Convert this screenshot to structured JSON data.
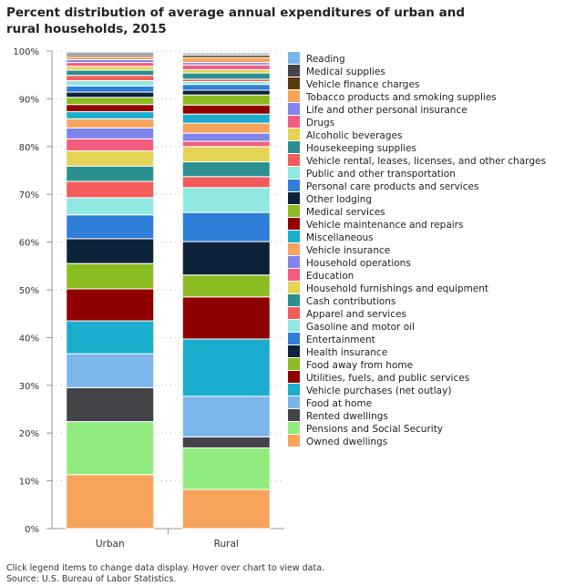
{
  "chart_data": {
    "type": "bar",
    "stacked": true,
    "title": "Percent distribution of average annual expenditures of urban and rural households, 2015",
    "categories": [
      "Urban",
      "Rural"
    ],
    "ylim": [
      0,
      100
    ],
    "yticks": [
      "0%",
      "10%",
      "20%",
      "30%",
      "40%",
      "50%",
      "60%",
      "70%",
      "80%",
      "90%",
      "100%"
    ],
    "grid": true,
    "legend_position": "right",
    "series": [
      {
        "name": "Owned dwellings",
        "color": "#f7a35c",
        "values": [
          11.3,
          8.2
        ]
      },
      {
        "name": "Pensions and Social Security",
        "color": "#90ed7d",
        "values": [
          11.1,
          8.7
        ]
      },
      {
        "name": "Rented dwellings",
        "color": "#434348",
        "values": [
          7.1,
          2.3
        ]
      },
      {
        "name": "Food at home",
        "color": "#7cb5ec",
        "values": [
          7.1,
          8.5
        ]
      },
      {
        "name": "Vehicle purchases (net outlay)",
        "color": "#1aadce",
        "values": [
          6.9,
          12.0
        ]
      },
      {
        "name": "Utilities, fuels, and public services",
        "color": "#910000",
        "values": [
          6.7,
          8.8
        ]
      },
      {
        "name": "Food away from home",
        "color": "#8bbc21",
        "values": [
          5.3,
          4.6
        ]
      },
      {
        "name": "Health insurance",
        "color": "#0d233a",
        "values": [
          5.2,
          7.0
        ]
      },
      {
        "name": "Entertainment",
        "color": "#2f7ed8",
        "values": [
          5.0,
          6.1
        ]
      },
      {
        "name": "Gasoline and motor oil",
        "color": "#91e8e1",
        "values": [
          3.6,
          5.2
        ]
      },
      {
        "name": "Apparel and services",
        "color": "#f45b5b",
        "values": [
          3.4,
          2.3
        ]
      },
      {
        "name": "Cash contributions",
        "color": "#2b908f",
        "values": [
          3.2,
          3.1
        ]
      },
      {
        "name": "Household furnishings and equipment",
        "color": "#e4d354",
        "values": [
          3.2,
          3.2
        ]
      },
      {
        "name": "Education",
        "color": "#f15c80",
        "values": [
          2.5,
          1.1
        ]
      },
      {
        "name": "Household operations",
        "color": "#8085e9",
        "values": [
          2.3,
          1.7
        ]
      },
      {
        "name": "Vehicle insurance",
        "color": "#f7a35c",
        "values": [
          1.9,
          2.1
        ]
      },
      {
        "name": "Miscellaneous",
        "color": "#1aadce",
        "values": [
          1.5,
          1.9
        ]
      },
      {
        "name": "Vehicle maintenance and repairs",
        "color": "#910000",
        "values": [
          1.5,
          1.9
        ]
      },
      {
        "name": "Medical services",
        "color": "#8bbc21",
        "values": [
          1.5,
          2.1
        ]
      },
      {
        "name": "Other lodging",
        "color": "#0d233a",
        "values": [
          1.1,
          1.0
        ]
      },
      {
        "name": "Personal care products and services",
        "color": "#2f7ed8",
        "values": [
          1.3,
          1.2
        ]
      },
      {
        "name": "Public and other transportation",
        "color": "#91e8e1",
        "values": [
          1.1,
          0.6
        ]
      },
      {
        "name": "Vehicle rental, leases, licenses, and other charges",
        "color": "#f45b5b",
        "values": [
          1.1,
          0.5
        ]
      },
      {
        "name": "Housekeeping supplies",
        "color": "#2b908f",
        "values": [
          1.1,
          1.3
        ]
      },
      {
        "name": "Alcoholic beverages",
        "color": "#e4d354",
        "values": [
          0.8,
          0.7
        ]
      },
      {
        "name": "Drugs",
        "color": "#f15c80",
        "values": [
          0.8,
          1.0
        ]
      },
      {
        "name": "Life and other personal insurance",
        "color": "#8085e9",
        "values": [
          0.6,
          0.5
        ]
      },
      {
        "name": "Tobacco products and smoking supplies",
        "color": "#f7a35c",
        "values": [
          0.6,
          1.0
        ]
      },
      {
        "name": "Vehicle finance charges",
        "color": "#5c3a10",
        "values": [
          0.4,
          0.5
        ]
      },
      {
        "name": "Medical supplies",
        "color": "#434348",
        "values": [
          0.4,
          0.3
        ]
      },
      {
        "name": "Reading",
        "color": "#7cb5ec",
        "values": [
          0.3,
          0.3
        ]
      }
    ]
  },
  "footer": {
    "note": "Click legend items to change data display. Hover over chart to view data.",
    "source": "Source: U.S. Bureau of Labor Statistics."
  }
}
